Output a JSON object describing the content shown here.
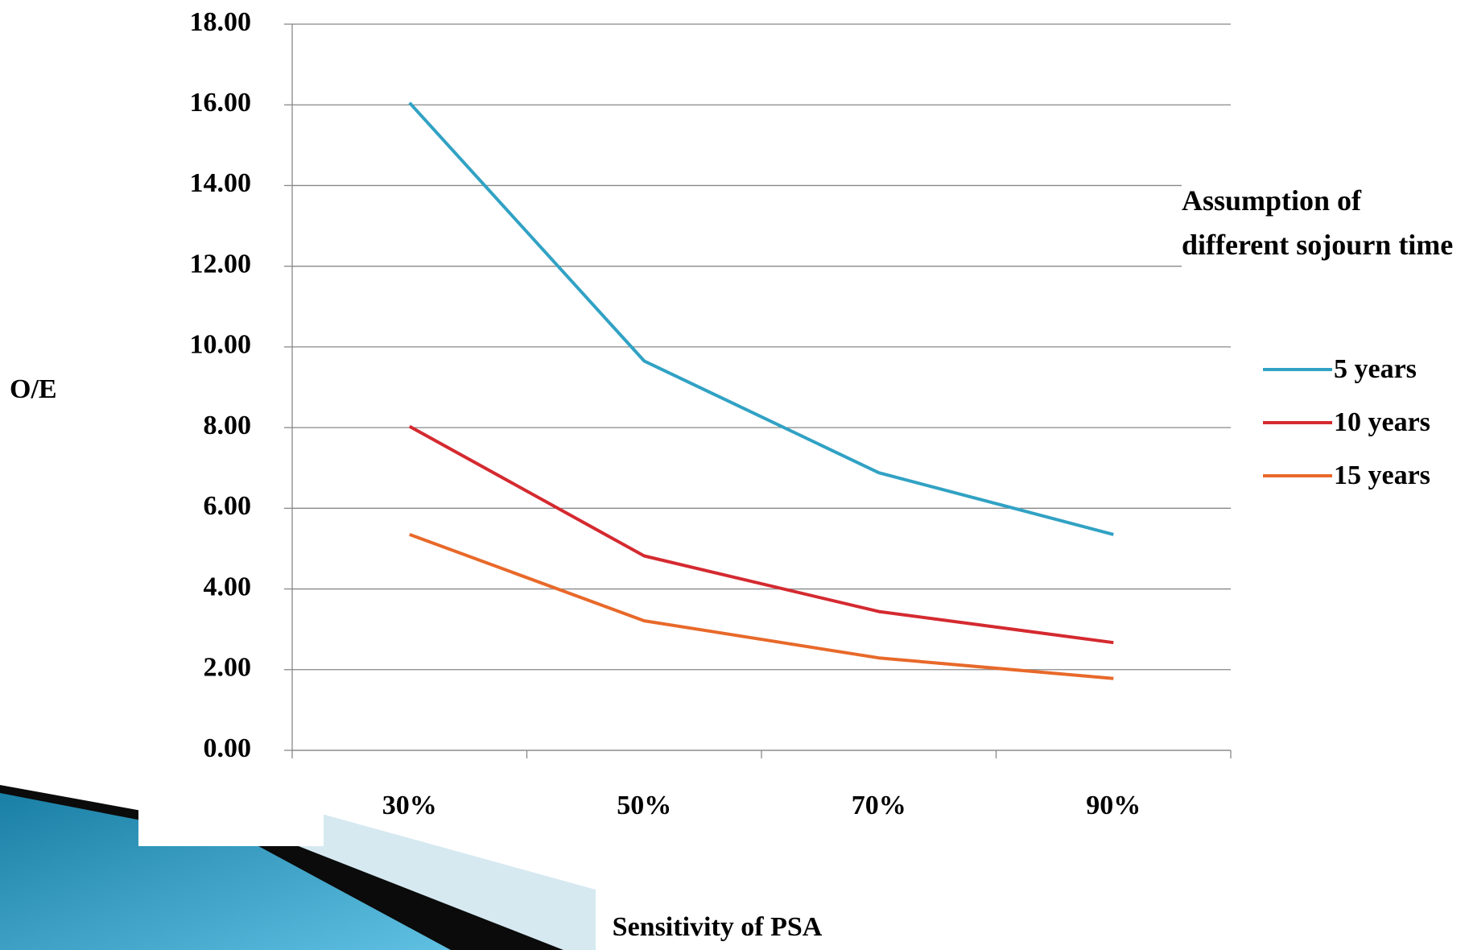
{
  "chart_data": {
    "type": "line",
    "y_label": "O/E",
    "x_label": "Sensitivity of PSA",
    "legend_title": "Assumption of different sojourn time",
    "categories": [
      "30%",
      "50%",
      "70%",
      "90%"
    ],
    "series": [
      {
        "name": "5 years",
        "color": "#31a2c4",
        "values": [
          16.05,
          9.65,
          6.88,
          5.35
        ]
      },
      {
        "name": "10 years",
        "color": "#d42a30",
        "values": [
          8.03,
          4.82,
          3.44,
          2.67
        ]
      },
      {
        "name": "15 years",
        "color": "#e8692a",
        "values": [
          5.35,
          3.21,
          2.29,
          1.78
        ]
      }
    ],
    "ylim": [
      0,
      18
    ],
    "yticks": [
      {
        "value": 0,
        "label": "0.00"
      },
      {
        "value": 2,
        "label": "2.00"
      },
      {
        "value": 4,
        "label": "4.00"
      },
      {
        "value": 6,
        "label": "6.00"
      },
      {
        "value": 8,
        "label": "8.00"
      },
      {
        "value": 10,
        "label": "10.00"
      },
      {
        "value": 12,
        "label": "12.00"
      },
      {
        "value": 14,
        "label": "14.00"
      },
      {
        "value": 16,
        "label": "16.00"
      },
      {
        "value": 18,
        "label": "18.00"
      }
    ],
    "grid": true,
    "legend": "right"
  }
}
